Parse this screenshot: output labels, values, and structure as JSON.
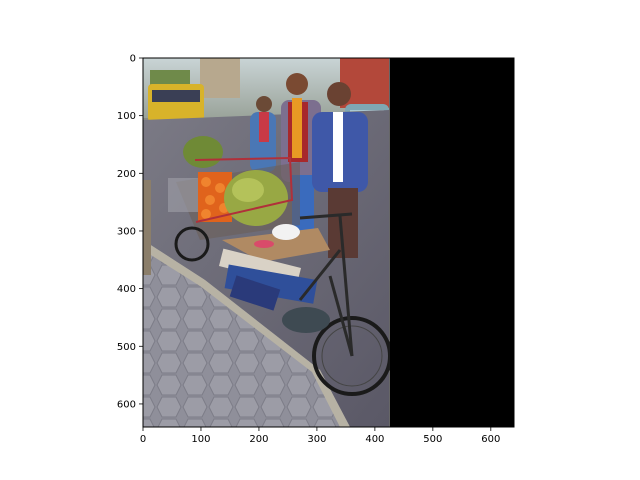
{
  "chart_data": {
    "type": "image",
    "title": "",
    "xlabel": "",
    "ylabel": "",
    "xlim": [
      0,
      640
    ],
    "ylim": [
      640,
      0
    ],
    "x_ticks": [
      0,
      100,
      200,
      300,
      400,
      500,
      600
    ],
    "y_ticks": [
      0,
      100,
      200,
      300,
      400,
      500,
      600
    ],
    "image": {
      "description": "photo of a street vendor's bicycle loaded with fruit and three people standing behind it",
      "photo_width": 425,
      "padding_color": "#000000"
    },
    "grid": false,
    "legend": "none"
  }
}
